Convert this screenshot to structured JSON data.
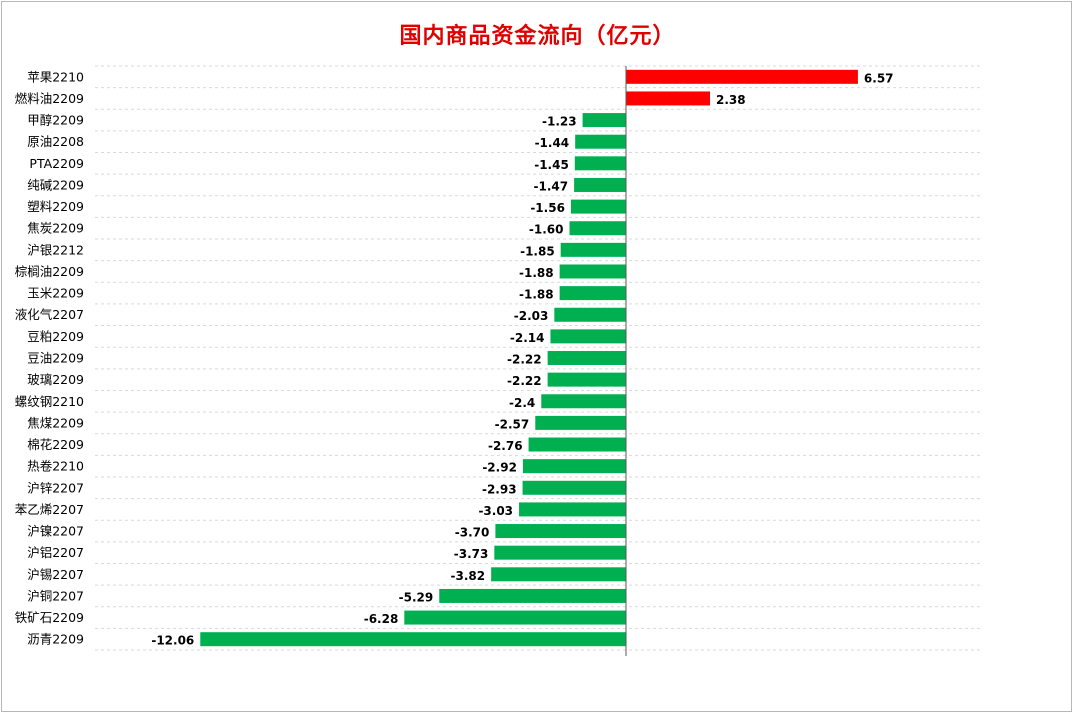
{
  "chart_data": {
    "type": "bar",
    "orientation": "horizontal",
    "title": "国内商品资金流向（亿元）",
    "xlabel": "",
    "ylabel": "",
    "grid": true,
    "legend": "none",
    "xlim": [
      -12.06,
      6.57
    ],
    "categories": [
      "苹果2210",
      "燃料油2209",
      "甲醇2209",
      "原油2208",
      "PTA2209",
      "纯碱2209",
      "塑料2209",
      "焦炭2209",
      "沪银2212",
      "棕榈油2209",
      "玉米2209",
      "液化气2207",
      "豆粕2209",
      "豆油2209",
      "玻璃2209",
      "螺纹钢2210",
      "焦煤2209",
      "棉花2209",
      "热卷2210",
      "沪锌2207",
      "苯乙烯2207",
      "沪镍2207",
      "沪铝2207",
      "沪锡2207",
      "沪铜2207",
      "铁矿石2209",
      "沥青2209"
    ],
    "values": [
      6.57,
      2.38,
      -1.23,
      -1.44,
      -1.45,
      -1.47,
      -1.56,
      -1.6,
      -1.85,
      -1.88,
      -1.88,
      -2.03,
      -2.14,
      -2.22,
      -2.22,
      -2.4,
      -2.57,
      -2.76,
      -2.92,
      -2.93,
      -3.03,
      -3.7,
      -3.73,
      -3.82,
      -5.29,
      -6.28,
      -12.06
    ],
    "value_labels": [
      "6.57",
      "2.38",
      "-1.23",
      "-1.44",
      "-1.45",
      "-1.47",
      "-1.56",
      "-1.60",
      "-1.85",
      "-1.88",
      "-1.88",
      "-2.03",
      "-2.14",
      "-2.22",
      "-2.22",
      "-2.4",
      "-2.57",
      "-2.76",
      "-2.92",
      "-2.93",
      "-3.03",
      "-3.70",
      "-3.73",
      "-3.82",
      "-5.29",
      "-6.28",
      "-12.06"
    ],
    "colors": {
      "positive": "#ff0000",
      "negative": "#00b050",
      "title": "#e00000",
      "grid": "#d9d9d9",
      "axis": "#595959"
    }
  }
}
